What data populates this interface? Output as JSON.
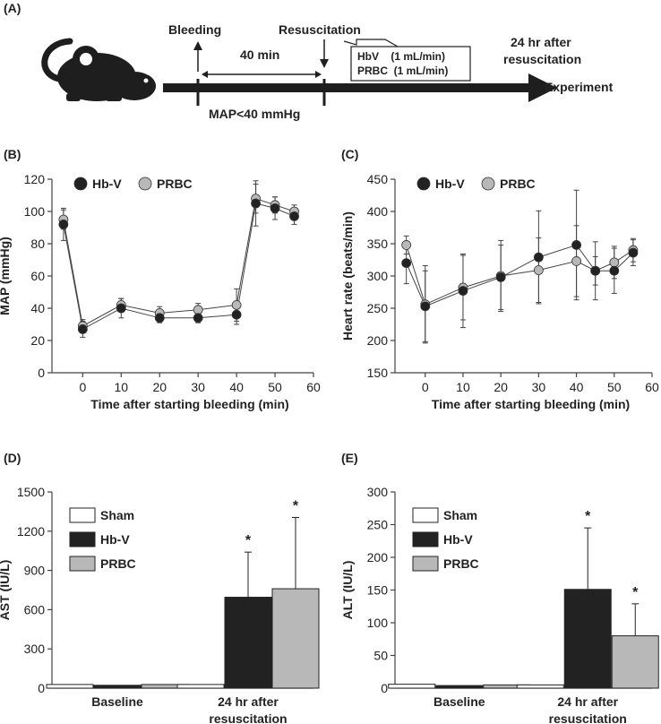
{
  "panel_labels": {
    "a": "(A)",
    "b": "(B)",
    "c": "(C)",
    "d": "(D)",
    "e": "(E)"
  },
  "protocol": {
    "bleeding": "Bleeding",
    "resuscitation": "Resuscitation",
    "duration": "40 min",
    "hbv_line": "HbV    (1 mL/min)",
    "prbc_line": "PRBC  (1 mL/min)",
    "after_line1": "24 hr after",
    "after_line2": "resuscitation",
    "experiment": "Experiment",
    "map_condition": "MAP<40 mmHg"
  },
  "colors": {
    "hbv": "#222222",
    "prbc": "#b8b8b8",
    "sham": "#ffffff",
    "axis": "#444444"
  },
  "chart_data": [
    {
      "id": "B",
      "type": "line",
      "title": "",
      "xlabel": "Time after starting bleeding (min)",
      "ylabel": "MAP (mmHg)",
      "xlim": [
        -8,
        60
      ],
      "ylim": [
        0,
        120
      ],
      "xticks": [
        0,
        10,
        20,
        30,
        40,
        50,
        60
      ],
      "yticks": [
        0,
        20,
        40,
        60,
        80,
        100,
        120
      ],
      "x": [
        -5,
        0,
        10,
        20,
        30,
        40,
        45,
        50,
        55
      ],
      "legend": [
        "Hb-V",
        "PRBC"
      ],
      "series": [
        {
          "name": "Hb-V",
          "values": [
            92,
            27,
            40,
            34,
            34,
            36,
            105,
            102,
            97
          ],
          "err": [
            10,
            5,
            6,
            3,
            3,
            6,
            14,
            7,
            5
          ]
        },
        {
          "name": "PRBC",
          "values": [
            95,
            29,
            42,
            37,
            39,
            42,
            108,
            104,
            100
          ],
          "err": [
            6,
            4,
            4,
            4,
            4,
            10,
            9,
            5,
            4
          ]
        }
      ]
    },
    {
      "id": "C",
      "type": "line",
      "title": "",
      "xlabel": "Time after starting bleeding (min)",
      "ylabel": "Heart rate (beats/min)",
      "xlim": [
        -8,
        60
      ],
      "ylim": [
        150,
        450
      ],
      "xticks": [
        0,
        10,
        20,
        30,
        40,
        50,
        60
      ],
      "yticks": [
        150,
        200,
        250,
        300,
        350,
        400,
        450
      ],
      "x": [
        -5,
        0,
        10,
        20,
        30,
        40,
        45,
        50,
        55
      ],
      "legend": [
        "Hb-V",
        "PRBC"
      ],
      "series": [
        {
          "name": "Hb-V",
          "values": [
            320,
            253,
            277,
            298,
            329,
            348,
            308,
            308,
            336
          ],
          "err": [
            32,
            55,
            57,
            50,
            72,
            85,
            45,
            35,
            20
          ]
        },
        {
          "name": "PRBC",
          "values": [
            348,
            256,
            282,
            300,
            309,
            323,
            308,
            321,
            340
          ],
          "err": [
            14,
            60,
            50,
            55,
            50,
            55,
            22,
            25,
            18
          ]
        }
      ]
    },
    {
      "id": "D",
      "type": "bar",
      "title": "",
      "xlabel": "",
      "ylabel": "AST (IU/L)",
      "ylim": [
        0,
        1500
      ],
      "yticks": [
        0,
        300,
        600,
        900,
        1200,
        1500
      ],
      "categories": [
        "Baseline",
        "24 hr after\nresuscitation"
      ],
      "category_lines": [
        [
          "Baseline"
        ],
        [
          "24 hr after",
          "resuscitation"
        ]
      ],
      "legend": [
        "Sham",
        "Hb-V",
        "PRBC"
      ],
      "series": [
        {
          "name": "Sham",
          "values": [
            28,
            28
          ],
          "err": [
            0,
            0
          ]
        },
        {
          "name": "Hb-V",
          "values": [
            22,
            695
          ],
          "err": [
            0,
            345
          ]
        },
        {
          "name": "PRBC",
          "values": [
            28,
            760
          ],
          "err": [
            0,
            545
          ]
        }
      ],
      "annotations": [
        "*",
        "*"
      ]
    },
    {
      "id": "E",
      "type": "bar",
      "title": "",
      "xlabel": "",
      "ylabel": "ALT (IU/L)",
      "ylim": [
        0,
        300
      ],
      "yticks": [
        0,
        50,
        100,
        150,
        200,
        250,
        300
      ],
      "categories": [
        "Baseline",
        "24 hr after\nresuscitation"
      ],
      "category_lines": [
        [
          "Baseline"
        ],
        [
          "24 hr after",
          "resuscitation"
        ]
      ],
      "legend": [
        "Sham",
        "Hb-V",
        "PRBC"
      ],
      "series": [
        {
          "name": "Sham",
          "values": [
            6,
            5
          ],
          "err": [
            0,
            0
          ]
        },
        {
          "name": "Hb-V",
          "values": [
            4,
            151
          ],
          "err": [
            0,
            94
          ]
        },
        {
          "name": "PRBC",
          "values": [
            5,
            80
          ],
          "err": [
            0,
            49
          ]
        }
      ],
      "annotations": [
        "*",
        "*"
      ]
    }
  ]
}
